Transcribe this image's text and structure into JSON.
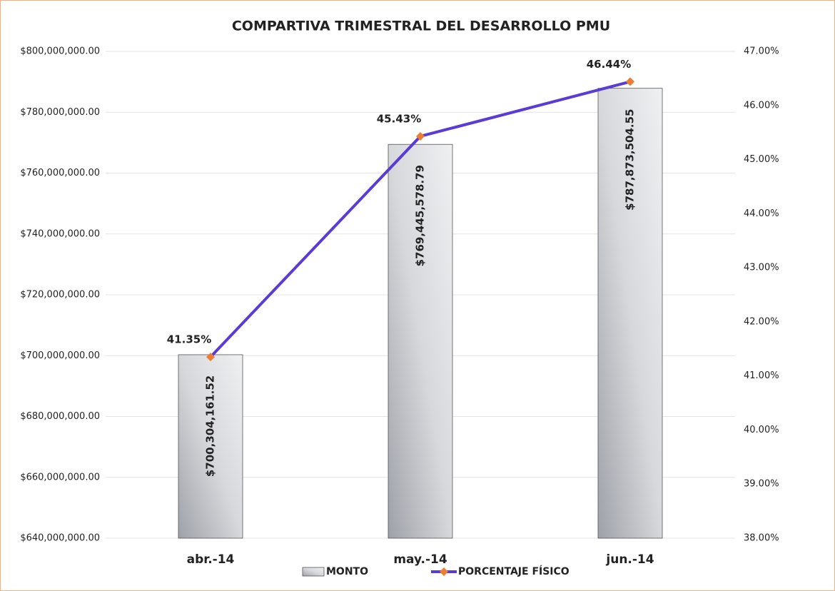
{
  "chart_data": {
    "type": "bar",
    "title": "COMPARTIVA TRIMESTRAL DEL DESARROLLO PMU",
    "categories": [
      "abr.-14",
      "may.-14",
      "jun.-14"
    ],
    "series": [
      {
        "name": "MONTO",
        "color": "#c0c2c6",
        "values": [
          700304161.52,
          769445578.79,
          787873504.55
        ],
        "value_labels": [
          "$700,304,161.52",
          "$769,445,578.79",
          "$787,873,504.55"
        ]
      },
      {
        "name": "PORCENTAJE FÍSICO",
        "type": "line",
        "axis": "y2",
        "color": "#5b3bd6",
        "marker_color": "#ed7d31",
        "values": [
          41.35,
          45.43,
          46.44
        ],
        "value_labels": [
          "41.35%",
          "45.43%",
          "46.44%"
        ]
      }
    ],
    "ylim": [
      640000000,
      800000000
    ],
    "yticks": [
      {
        "value": 640000000,
        "label": "$640,000,000.00"
      },
      {
        "value": 660000000,
        "label": "$660,000,000.00"
      },
      {
        "value": 680000000,
        "label": "$680,000,000.00"
      },
      {
        "value": 700000000,
        "label": "$700,000,000.00"
      },
      {
        "value": 720000000,
        "label": "$720,000,000.00"
      },
      {
        "value": 740000000,
        "label": "$740,000,000.00"
      },
      {
        "value": 760000000,
        "label": "$760,000,000.00"
      },
      {
        "value": 780000000,
        "label": "$780,000,000.00"
      },
      {
        "value": 800000000,
        "label": "$800,000,000.00"
      }
    ],
    "y2lim": [
      38,
      47
    ],
    "y2ticks": [
      {
        "value": 38,
        "label": "38.00%"
      },
      {
        "value": 39,
        "label": "39.00%"
      },
      {
        "value": 40,
        "label": "40.00%"
      },
      {
        "value": 41,
        "label": "41.00%"
      },
      {
        "value": 42,
        "label": "42.00%"
      },
      {
        "value": 43,
        "label": "43.00%"
      },
      {
        "value": 44,
        "label": "44.00%"
      },
      {
        "value": 45,
        "label": "45.00%"
      },
      {
        "value": 46,
        "label": "46.00%"
      },
      {
        "value": 47,
        "label": "47.00%"
      }
    ],
    "grid": true,
    "legend": "bottom"
  }
}
